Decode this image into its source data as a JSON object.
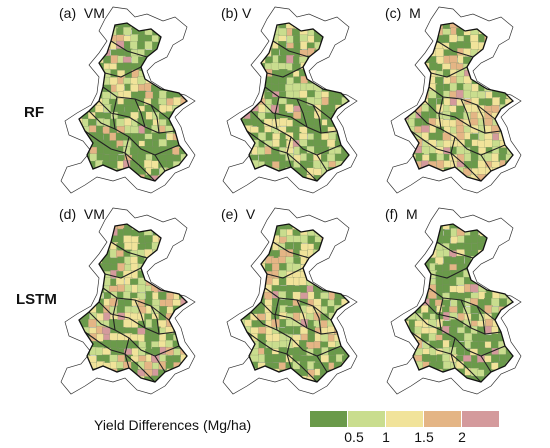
{
  "rows": [
    {
      "label": "RF",
      "panels": [
        {
          "label": "(a)  VM",
          "scheme": "greenish",
          "seed": 11
        },
        {
          "label": "(b) V",
          "scheme": "greenish",
          "seed": 23
        },
        {
          "label": "(c)  M",
          "scheme": "warm",
          "seed": 37
        }
      ]
    },
    {
      "label": "LSTM",
      "panels": [
        {
          "label": "(d)  VM",
          "scheme": "mixed",
          "seed": 41
        },
        {
          "label": "(e)  V",
          "scheme": "mixed",
          "seed": 53
        },
        {
          "label": "(f)  M",
          "scheme": "greenish",
          "seed": 67
        }
      ]
    }
  ],
  "legend": {
    "title": "Yield Differences (Mg/ha)",
    "colors": [
      "#6a9a4a",
      "#c9dd8e",
      "#f1e39a",
      "#e4b585",
      "#d49a9c"
    ],
    "ticks": [
      "0.5",
      "1",
      "1.5",
      "2"
    ]
  },
  "map_colors": {
    "outline": "#333333",
    "outer_region": "#ffffff"
  }
}
